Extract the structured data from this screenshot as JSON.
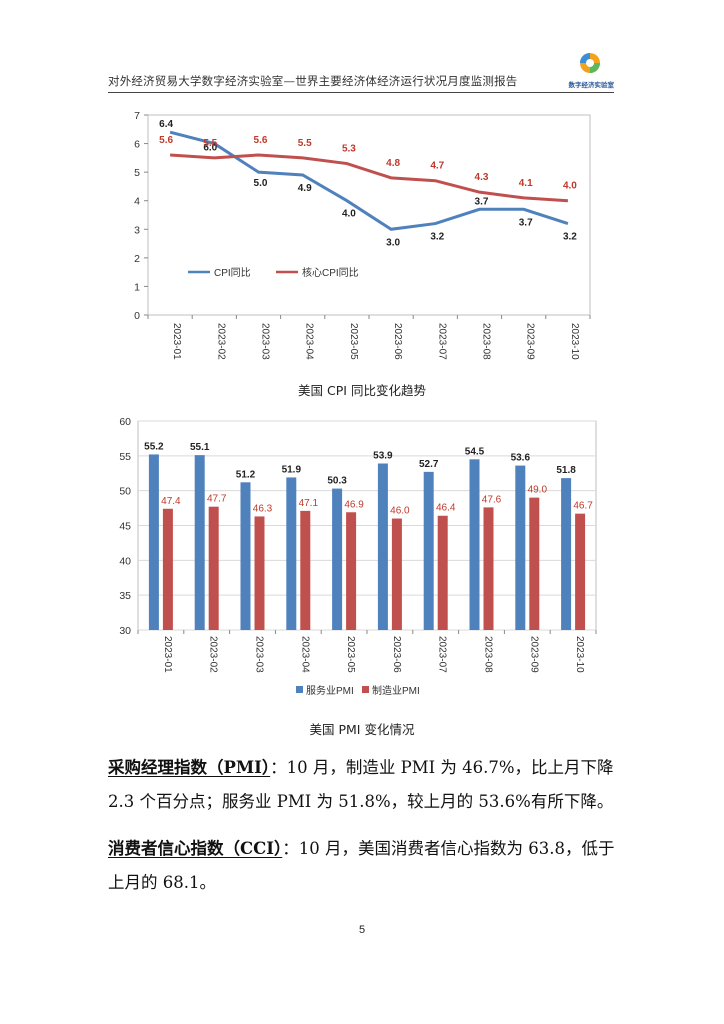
{
  "header": {
    "title": "对外经济贸易大学数字经济实验室—世界主要经济体经济运行状况月度监测报告",
    "logo_text": "数字经济实验室"
  },
  "charts": {
    "cpi_caption": "美国 CPI 同比变化趋势",
    "pmi_caption": "美国 PMI 变化情况"
  },
  "chart_data": [
    {
      "type": "line",
      "categories": [
        "2023-01",
        "2023-02",
        "2023-03",
        "2023-04",
        "2023-05",
        "2023-06",
        "2023-07",
        "2023-08",
        "2023-09",
        "2023-10"
      ],
      "series": [
        {
          "name": "CPI同比",
          "color": "#4f81bd",
          "values": [
            6.4,
            6.0,
            5.0,
            4.9,
            4.0,
            3.0,
            3.2,
            3.7,
            3.7,
            3.2
          ]
        },
        {
          "name": "核心CPI同比",
          "color": "#c0504d",
          "values": [
            5.6,
            5.5,
            5.6,
            5.5,
            5.3,
            4.8,
            4.7,
            4.3,
            4.1,
            4.0
          ]
        }
      ],
      "ylim": [
        0,
        7
      ],
      "yticks": [
        0,
        1,
        2,
        3,
        4,
        5,
        6,
        7
      ],
      "legend": "bottom-left inside"
    },
    {
      "type": "bar",
      "categories": [
        "2023-01",
        "2023-02",
        "2023-03",
        "2023-04",
        "2023-05",
        "2023-06",
        "2023-07",
        "2023-08",
        "2023-09",
        "2023-10"
      ],
      "series": [
        {
          "name": "服务业PMI",
          "color": "#4f81bd",
          "values": [
            55.2,
            55.1,
            51.2,
            51.9,
            50.3,
            53.9,
            52.7,
            54.5,
            53.6,
            51.8
          ]
        },
        {
          "name": "制造业PMI",
          "color": "#c0504d",
          "values": [
            47.4,
            47.7,
            46.3,
            47.1,
            46.9,
            46.0,
            46.4,
            47.6,
            49.0,
            46.7
          ]
        }
      ],
      "ylim": [
        30,
        60
      ],
      "yticks": [
        30,
        35,
        40,
        45,
        50,
        55,
        60
      ],
      "legend": "bottom"
    }
  ],
  "body": {
    "pmi_heading": "采购经理指数（PMI）",
    "pmi_text": "：10 月，制造业 PMI 为 46.7%，比上月下降 2.3 个百分点；服务业 PMI 为 51.8%，较上月的 53.6%有所下降。",
    "cci_heading": "消费者信心指数（CCI）",
    "cci_text": "：10 月，美国消费者信心指数为 63.8，低于上月的 68.1。"
  },
  "page_number": "5"
}
